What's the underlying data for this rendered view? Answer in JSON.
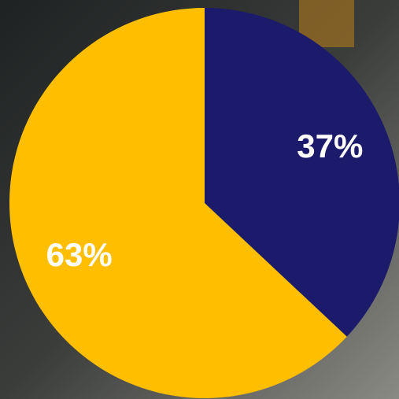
{
  "chart_data": {
    "type": "pie",
    "values": [
      37,
      63
    ],
    "value_labels": [
      "37%",
      "63%"
    ],
    "colors": [
      "#1c1a6b",
      "#ffbe00"
    ],
    "start_angle": 0,
    "direction": "clockwise"
  }
}
